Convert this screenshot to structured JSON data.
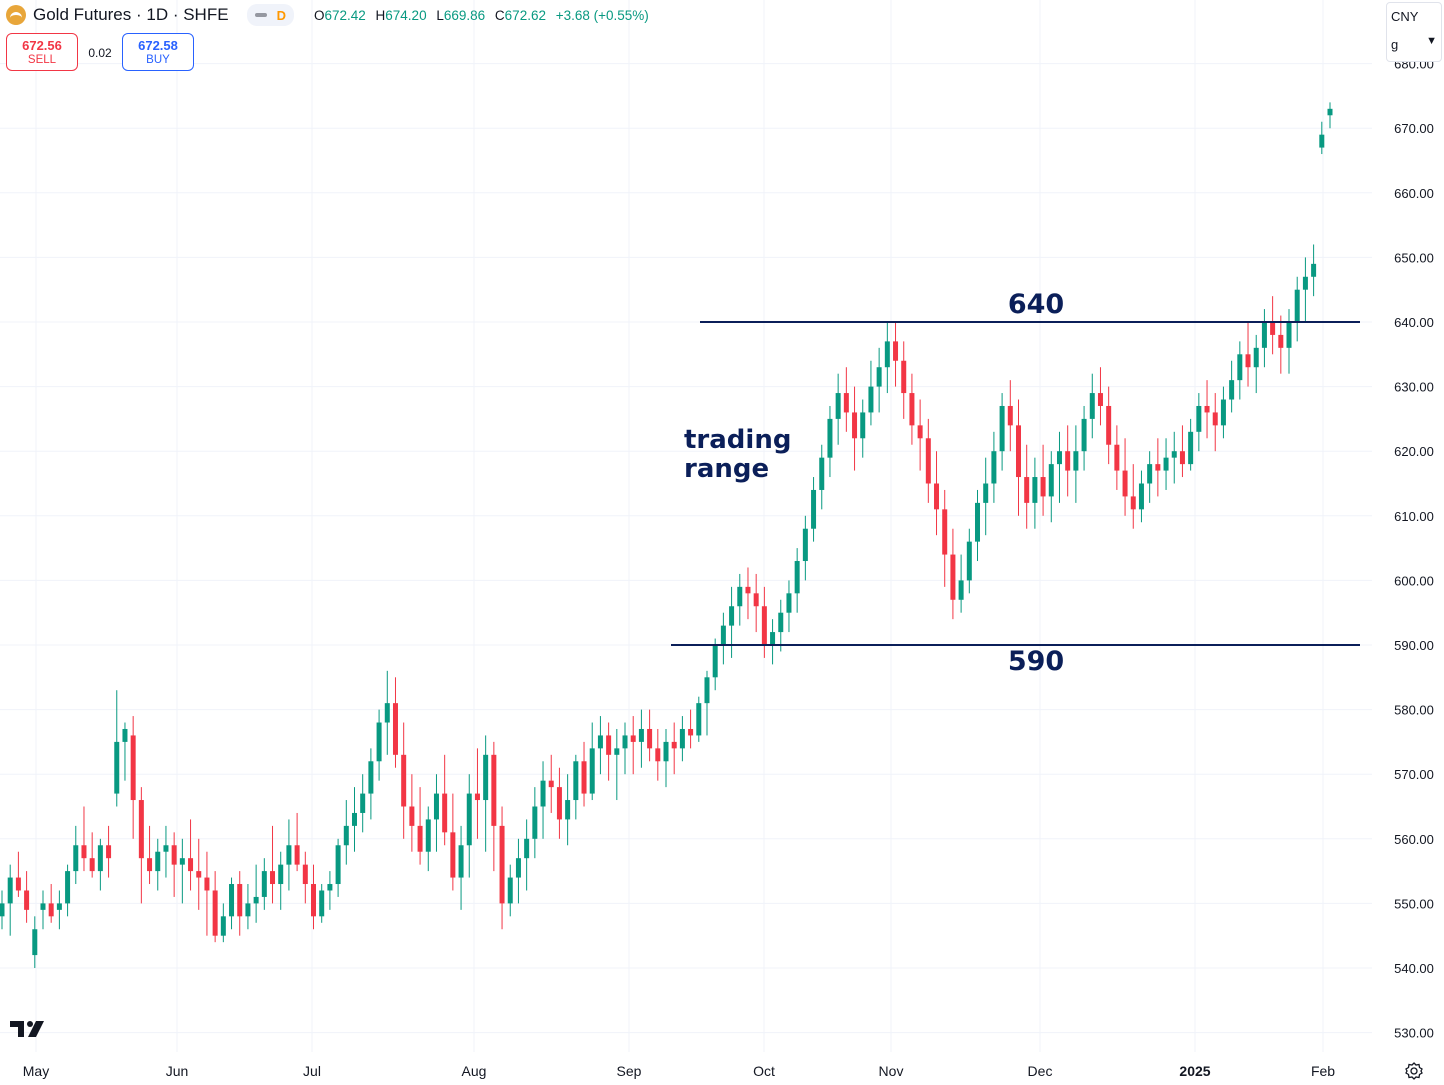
{
  "header": {
    "symbol_title": "Gold Futures · 1D · SHFE",
    "interval_badge": "D",
    "ohlc": {
      "open_label": "O",
      "open": "672.42",
      "high_label": "H",
      "high": "674.20",
      "low_label": "L",
      "low": "669.86",
      "close_label": "C",
      "close": "672.62",
      "change": "+3.68 (+0.55%)"
    }
  },
  "trade": {
    "sell_price": "672.56",
    "sell_label": "SELL",
    "spread": "0.02",
    "buy_price": "672.58",
    "buy_label": "BUY"
  },
  "currency": {
    "code": "CNY",
    "unit": "g"
  },
  "colors": {
    "up": "#089981",
    "down": "#f23645",
    "annotation": "#0b1f59",
    "grid": "#f0f3fa",
    "axis_text": "#131722"
  },
  "icons": {
    "logo": "tradingview-logo-icon",
    "settings": "settings-icon",
    "brand": "gold-icon"
  },
  "chart_data": {
    "type": "candlestick",
    "title": "Gold Futures · 1D · SHFE",
    "ylim": [
      525,
      685
    ],
    "y_ticks": [
      "530.00",
      "540.00",
      "550.00",
      "560.00",
      "570.00",
      "580.00",
      "590.00",
      "600.00",
      "610.00",
      "620.00",
      "630.00",
      "640.00",
      "650.00",
      "660.00",
      "670.00",
      "680.00"
    ],
    "x_ticks": [
      "May",
      "Jun",
      "Jul",
      "Aug",
      "Sep",
      "Oct",
      "Nov",
      "Dec",
      "2025",
      "Feb"
    ],
    "grid": true,
    "annotations": {
      "upper_level": 640,
      "upper_label": "640",
      "lower_level": 590,
      "lower_label": "590",
      "range_text_line1": "trading",
      "range_text_line2": "range"
    },
    "candles": [
      [
        548,
        552,
        546,
        550
      ],
      [
        550,
        556,
        545,
        554
      ],
      [
        554,
        558,
        551,
        552
      ],
      [
        552,
        555,
        547,
        549
      ],
      [
        542,
        548,
        540,
        546
      ],
      [
        549,
        552,
        546,
        550
      ],
      [
        550,
        553,
        547,
        548
      ],
      [
        549,
        552,
        546,
        550
      ],
      [
        550,
        556,
        548,
        555
      ],
      [
        555,
        562,
        553,
        559
      ],
      [
        559,
        565,
        555,
        557
      ],
      [
        557,
        561,
        554,
        555
      ],
      [
        555,
        560,
        552,
        559
      ],
      [
        559,
        562,
        554,
        557
      ],
      [
        567,
        583,
        565,
        575
      ],
      [
        575,
        578,
        569,
        577
      ],
      [
        576,
        579,
        560,
        566
      ],
      [
        566,
        568,
        550,
        557
      ],
      [
        557,
        562,
        553,
        555
      ],
      [
        555,
        560,
        552,
        558
      ],
      [
        558,
        562,
        554,
        559
      ],
      [
        559,
        561,
        551,
        556
      ],
      [
        556,
        560,
        550,
        557
      ],
      [
        557,
        563,
        552,
        555
      ],
      [
        555,
        560,
        549,
        554
      ],
      [
        554,
        558,
        545,
        552
      ],
      [
        552,
        555,
        544,
        545
      ],
      [
        545,
        550,
        544,
        548
      ],
      [
        548,
        554,
        546,
        553
      ],
      [
        553,
        555,
        545,
        548
      ],
      [
        548,
        553,
        546,
        550
      ],
      [
        550,
        556,
        547,
        551
      ],
      [
        551,
        557,
        549,
        555
      ],
      [
        555,
        562,
        550,
        553
      ],
      [
        553,
        558,
        549,
        556
      ],
      [
        556,
        563,
        552,
        559
      ],
      [
        559,
        564,
        555,
        556
      ],
      [
        556,
        558,
        550,
        553
      ],
      [
        553,
        556,
        546,
        548
      ],
      [
        548,
        553,
        547,
        552
      ],
      [
        552,
        555,
        549,
        553
      ],
      [
        553,
        560,
        551,
        559
      ],
      [
        559,
        566,
        556,
        562
      ],
      [
        562,
        568,
        558,
        564
      ],
      [
        564,
        570,
        561,
        567
      ],
      [
        567,
        574,
        563,
        572
      ],
      [
        572,
        580,
        569,
        578
      ],
      [
        578,
        586,
        573,
        581
      ],
      [
        581,
        585,
        571,
        573
      ],
      [
        573,
        578,
        560,
        565
      ],
      [
        565,
        570,
        558,
        562
      ],
      [
        562,
        568,
        556,
        558
      ],
      [
        558,
        565,
        555,
        563
      ],
      [
        563,
        570,
        558,
        567
      ],
      [
        567,
        573,
        559,
        561
      ],
      [
        561,
        567,
        552,
        554
      ],
      [
        554,
        562,
        549,
        559
      ],
      [
        559,
        570,
        554,
        567
      ],
      [
        567,
        574,
        560,
        566
      ],
      [
        566,
        576,
        558,
        573
      ],
      [
        573,
        575,
        555,
        562
      ],
      [
        562,
        565,
        546,
        550
      ],
      [
        550,
        556,
        548,
        554
      ],
      [
        554,
        560,
        550,
        557
      ],
      [
        557,
        563,
        552,
        560
      ],
      [
        560,
        568,
        557,
        565
      ],
      [
        565,
        572,
        560,
        569
      ],
      [
        569,
        573,
        564,
        568
      ],
      [
        568,
        571,
        560,
        563
      ],
      [
        563,
        570,
        559,
        566
      ],
      [
        566,
        573,
        563,
        572
      ],
      [
        572,
        575,
        565,
        567
      ],
      [
        567,
        578,
        566,
        574
      ],
      [
        574,
        579,
        570,
        576
      ],
      [
        576,
        578,
        569,
        573
      ],
      [
        573,
        577,
        566,
        574
      ],
      [
        574,
        578,
        570,
        576
      ],
      [
        576,
        579,
        570,
        575
      ],
      [
        575,
        580,
        571,
        577
      ],
      [
        577,
        580,
        572,
        574
      ],
      [
        574,
        577,
        569,
        572
      ],
      [
        572,
        577,
        568,
        575
      ],
      [
        575,
        578,
        570,
        574
      ],
      [
        574,
        579,
        572,
        577
      ],
      [
        577,
        580,
        574,
        576
      ],
      [
        576,
        582,
        575,
        581
      ],
      [
        581,
        586,
        576,
        585
      ],
      [
        585,
        591,
        583,
        590
      ],
      [
        590,
        595,
        587,
        593
      ],
      [
        593,
        599,
        588,
        596
      ],
      [
        596,
        601,
        593,
        599
      ],
      [
        599,
        602,
        594,
        598
      ],
      [
        598,
        601,
        592,
        596
      ],
      [
        596,
        599,
        588,
        590
      ],
      [
        590,
        594,
        587,
        592
      ],
      [
        592,
        597,
        589,
        595
      ],
      [
        595,
        600,
        592,
        598
      ],
      [
        598,
        605,
        595,
        603
      ],
      [
        603,
        610,
        600,
        608
      ],
      [
        608,
        616,
        606,
        614
      ],
      [
        614,
        621,
        611,
        619
      ],
      [
        619,
        627,
        616,
        625
      ],
      [
        625,
        632,
        621,
        629
      ],
      [
        629,
        633,
        623,
        626
      ],
      [
        626,
        630,
        617,
        622
      ],
      [
        622,
        628,
        619,
        626
      ],
      [
        626,
        634,
        624,
        630
      ],
      [
        630,
        636,
        626,
        633
      ],
      [
        633,
        640,
        629,
        637
      ],
      [
        637,
        640,
        630,
        634
      ],
      [
        634,
        637,
        625,
        629
      ],
      [
        629,
        632,
        621,
        624
      ],
      [
        624,
        628,
        617,
        622
      ],
      [
        622,
        625,
        612,
        615
      ],
      [
        615,
        620,
        607,
        611
      ],
      [
        611,
        614,
        599,
        604
      ],
      [
        604,
        608,
        594,
        597
      ],
      [
        597,
        604,
        595,
        600
      ],
      [
        600,
        608,
        598,
        606
      ],
      [
        606,
        614,
        603,
        612
      ],
      [
        612,
        619,
        607,
        615
      ],
      [
        615,
        623,
        612,
        620
      ],
      [
        620,
        629,
        617,
        627
      ],
      [
        627,
        631,
        620,
        624
      ],
      [
        624,
        628,
        610,
        616
      ],
      [
        616,
        621,
        608,
        612
      ],
      [
        612,
        619,
        608,
        616
      ],
      [
        616,
        621,
        610,
        613
      ],
      [
        613,
        620,
        609,
        618
      ],
      [
        618,
        623,
        612,
        620
      ],
      [
        620,
        624,
        613,
        617
      ],
      [
        617,
        624,
        612,
        620
      ],
      [
        620,
        627,
        617,
        625
      ],
      [
        625,
        632,
        622,
        629
      ],
      [
        629,
        633,
        624,
        627
      ],
      [
        627,
        630,
        618,
        621
      ],
      [
        621,
        624,
        614,
        617
      ],
      [
        617,
        622,
        610,
        613
      ],
      [
        613,
        618,
        608,
        611
      ],
      [
        611,
        617,
        609,
        615
      ],
      [
        615,
        620,
        612,
        618
      ],
      [
        618,
        622,
        613,
        617
      ],
      [
        617,
        622,
        614,
        619
      ],
      [
        619,
        623,
        615,
        620
      ],
      [
        620,
        624,
        616,
        618
      ],
      [
        618,
        625,
        617,
        623
      ],
      [
        623,
        629,
        620,
        627
      ],
      [
        627,
        631,
        622,
        626
      ],
      [
        626,
        629,
        620,
        624
      ],
      [
        624,
        630,
        622,
        628
      ],
      [
        628,
        634,
        626,
        631
      ],
      [
        631,
        637,
        628,
        635
      ],
      [
        635,
        640,
        630,
        633
      ],
      [
        633,
        638,
        629,
        636
      ],
      [
        636,
        642,
        633,
        640
      ],
      [
        640,
        644,
        635,
        638
      ],
      [
        638,
        641,
        632,
        636
      ],
      [
        636,
        642,
        632,
        640
      ],
      [
        640,
        647,
        637,
        645
      ],
      [
        645,
        650,
        640,
        647
      ],
      [
        647,
        652,
        644,
        649
      ],
      [
        667,
        671,
        666,
        669
      ],
      [
        672,
        674,
        670,
        673
      ]
    ]
  },
  "axis": {
    "y_labels": [
      "530.00",
      "540.00",
      "550.00",
      "560.00",
      "570.00",
      "580.00",
      "590.00",
      "600.00",
      "610.00",
      "620.00",
      "630.00",
      "640.00",
      "650.00",
      "660.00",
      "670.00",
      "680.00"
    ],
    "x_labels": [
      "May",
      "Jun",
      "Jul",
      "Aug",
      "Sep",
      "Oct",
      "Nov",
      "Dec",
      "2025",
      "Feb"
    ]
  }
}
